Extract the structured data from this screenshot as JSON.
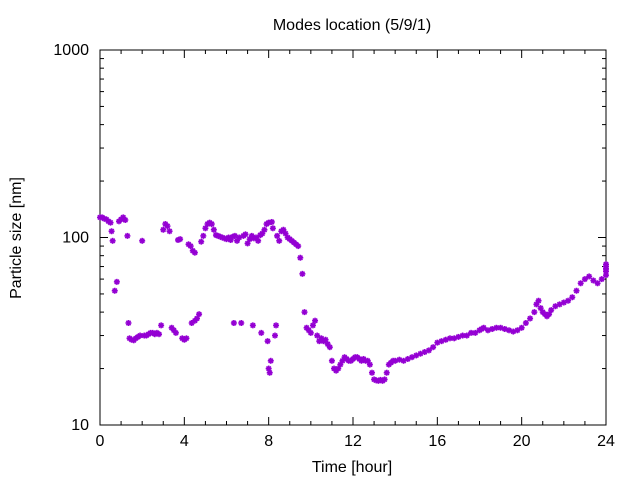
{
  "chart_data": {
    "type": "scatter",
    "title": "Modes location (5/9/1)",
    "xlabel": "Time [hour]",
    "ylabel": "Particle size [nm]",
    "xlim": [
      0,
      24
    ],
    "ylim": [
      10,
      1000
    ],
    "yscale": "log",
    "grid": false,
    "x_ticks": [
      "0",
      "4",
      "8",
      "12",
      "16",
      "20",
      "24"
    ],
    "x_tick_values": [
      0,
      4,
      8,
      12,
      16,
      20,
      24
    ],
    "y_ticks": [
      "10",
      "100",
      "1000"
    ],
    "y_tick_values": [
      10,
      100,
      1000
    ],
    "marker_color": "#9400D3",
    "series": [
      {
        "points": [
          [
            0.0,
            128
          ],
          [
            0.1,
            128
          ],
          [
            0.2,
            126
          ],
          [
            0.3,
            125
          ],
          [
            0.4,
            122
          ],
          [
            0.5,
            120
          ],
          [
            0.55,
            108
          ],
          [
            0.6,
            96
          ],
          [
            0.7,
            52
          ],
          [
            0.8,
            58
          ],
          [
            0.9,
            122
          ],
          [
            1.0,
            125
          ],
          [
            1.1,
            128
          ],
          [
            1.2,
            124
          ],
          [
            1.3,
            102
          ],
          [
            1.35,
            35
          ],
          [
            1.4,
            29
          ],
          [
            1.5,
            28.5
          ],
          [
            1.6,
            28.3
          ],
          [
            1.7,
            29
          ],
          [
            1.8,
            29.5
          ],
          [
            1.9,
            30
          ],
          [
            2.0,
            96
          ],
          [
            2.1,
            30
          ],
          [
            2.2,
            30
          ],
          [
            2.3,
            30.5
          ],
          [
            2.4,
            31
          ],
          [
            2.5,
            31
          ],
          [
            2.6,
            30.5
          ],
          [
            2.7,
            31
          ],
          [
            2.8,
            30.5
          ],
          [
            2.9,
            34
          ],
          [
            3.0,
            110
          ],
          [
            3.1,
            118
          ],
          [
            3.2,
            115
          ],
          [
            3.3,
            108
          ],
          [
            3.4,
            33
          ],
          [
            3.5,
            32
          ],
          [
            3.6,
            31
          ],
          [
            3.7,
            97
          ],
          [
            3.8,
            98
          ],
          [
            3.9,
            29
          ],
          [
            4.0,
            28.5
          ],
          [
            4.1,
            29
          ],
          [
            4.2,
            92
          ],
          [
            4.3,
            90
          ],
          [
            4.4,
            85
          ],
          [
            4.5,
            83
          ],
          [
            4.35,
            35
          ],
          [
            4.5,
            36
          ],
          [
            4.6,
            37
          ],
          [
            4.7,
            39
          ],
          [
            4.8,
            95
          ],
          [
            4.9,
            102
          ],
          [
            5.0,
            112
          ],
          [
            5.1,
            118
          ],
          [
            5.2,
            120
          ],
          [
            5.3,
            118
          ],
          [
            5.4,
            110
          ],
          [
            5.5,
            103
          ],
          [
            5.6,
            102
          ],
          [
            5.7,
            101
          ],
          [
            5.8,
            100
          ],
          [
            5.9,
            99
          ],
          [
            6.0,
            98
          ],
          [
            6.1,
            100
          ],
          [
            6.2,
            97
          ],
          [
            6.3,
            101
          ],
          [
            6.35,
            35
          ],
          [
            6.4,
            102
          ],
          [
            6.5,
            96
          ],
          [
            6.6,
            100
          ],
          [
            6.7,
            35
          ],
          [
            6.8,
            102
          ],
          [
            6.9,
            104
          ],
          [
            7.0,
            93
          ],
          [
            7.1,
            98
          ],
          [
            7.2,
            102
          ],
          [
            7.25,
            34
          ],
          [
            7.3,
            99
          ],
          [
            7.4,
            100
          ],
          [
            7.5,
            96
          ],
          [
            7.6,
            103
          ],
          [
            7.65,
            31
          ],
          [
            7.7,
            105
          ],
          [
            7.8,
            110
          ],
          [
            7.9,
            118
          ],
          [
            7.95,
            28
          ],
          [
            8.0,
            120
          ],
          [
            8.0,
            20
          ],
          [
            8.05,
            19
          ],
          [
            8.1,
            22
          ],
          [
            8.15,
            121
          ],
          [
            8.2,
            112
          ],
          [
            8.3,
            30
          ],
          [
            8.35,
            34
          ],
          [
            8.4,
            102
          ],
          [
            8.5,
            96
          ],
          [
            8.6,
            108
          ],
          [
            8.7,
            110
          ],
          [
            8.8,
            105
          ],
          [
            8.9,
            100
          ],
          [
            9.0,
            98
          ],
          [
            9.1,
            96
          ],
          [
            9.2,
            94
          ],
          [
            9.3,
            92
          ],
          [
            9.4,
            90
          ],
          [
            9.5,
            78
          ],
          [
            9.6,
            64
          ],
          [
            9.7,
            40
          ],
          [
            9.8,
            33
          ],
          [
            9.9,
            32
          ],
          [
            10.0,
            31
          ],
          [
            10.1,
            34
          ],
          [
            10.2,
            36
          ],
          [
            10.3,
            30
          ],
          [
            10.4,
            28
          ],
          [
            10.5,
            29
          ],
          [
            10.6,
            28
          ],
          [
            10.7,
            28.5
          ],
          [
            10.8,
            27
          ],
          [
            10.9,
            26
          ],
          [
            11.0,
            22
          ],
          [
            11.1,
            20
          ],
          [
            11.2,
            19.5
          ],
          [
            11.3,
            20
          ],
          [
            11.4,
            21
          ],
          [
            11.5,
            22
          ],
          [
            11.6,
            23
          ],
          [
            11.7,
            22.5
          ],
          [
            11.8,
            22
          ],
          [
            11.9,
            22
          ],
          [
            12.0,
            22.5
          ],
          [
            12.1,
            23
          ],
          [
            12.2,
            23
          ],
          [
            12.3,
            22.5
          ],
          [
            12.4,
            22
          ],
          [
            12.5,
            22.5
          ],
          [
            12.6,
            22
          ],
          [
            12.7,
            22
          ],
          [
            12.8,
            21
          ],
          [
            12.9,
            19
          ],
          [
            13.0,
            17.5
          ],
          [
            13.1,
            17.3
          ],
          [
            13.2,
            17.2
          ],
          [
            13.3,
            17.4
          ],
          [
            13.4,
            17.2
          ],
          [
            13.5,
            17.5
          ],
          [
            13.6,
            19
          ],
          [
            13.7,
            21
          ],
          [
            13.8,
            21.5
          ],
          [
            13.9,
            22
          ],
          [
            14.0,
            22
          ],
          [
            14.2,
            22.3
          ],
          [
            14.4,
            22
          ],
          [
            14.6,
            22.5
          ],
          [
            14.8,
            23
          ],
          [
            15.0,
            23.5
          ],
          [
            15.2,
            24
          ],
          [
            15.4,
            24.5
          ],
          [
            15.6,
            25
          ],
          [
            15.8,
            26
          ],
          [
            16.0,
            27.5
          ],
          [
            16.2,
            28
          ],
          [
            16.4,
            28.5
          ],
          [
            16.6,
            29
          ],
          [
            16.8,
            29
          ],
          [
            17.0,
            29.5
          ],
          [
            17.2,
            30
          ],
          [
            17.4,
            30
          ],
          [
            17.6,
            31
          ],
          [
            17.8,
            31
          ],
          [
            18.0,
            32
          ],
          [
            18.1,
            32.5
          ],
          [
            18.2,
            33
          ],
          [
            18.4,
            32
          ],
          [
            18.6,
            32.5
          ],
          [
            18.8,
            33
          ],
          [
            19.0,
            33
          ],
          [
            19.2,
            32.5
          ],
          [
            19.4,
            32
          ],
          [
            19.6,
            31.5
          ],
          [
            19.8,
            32
          ],
          [
            20.0,
            33
          ],
          [
            20.2,
            35
          ],
          [
            20.4,
            37
          ],
          [
            20.6,
            40
          ],
          [
            20.7,
            44
          ],
          [
            20.8,
            46
          ],
          [
            20.9,
            42
          ],
          [
            21.0,
            40
          ],
          [
            21.1,
            39
          ],
          [
            21.2,
            38
          ],
          [
            21.3,
            39
          ],
          [
            21.4,
            41
          ],
          [
            21.6,
            43
          ],
          [
            21.8,
            44
          ],
          [
            22.0,
            45
          ],
          [
            22.2,
            46
          ],
          [
            22.4,
            48
          ],
          [
            22.6,
            52
          ],
          [
            22.8,
            57
          ],
          [
            23.0,
            60
          ],
          [
            23.2,
            62
          ],
          [
            23.4,
            59
          ],
          [
            23.6,
            57
          ],
          [
            23.8,
            60
          ],
          [
            24.0,
            63
          ],
          [
            24.1,
            66
          ],
          [
            24.2,
            68
          ],
          [
            24.3,
            70
          ],
          [
            24.4,
            72
          ]
        ]
      }
    ]
  }
}
